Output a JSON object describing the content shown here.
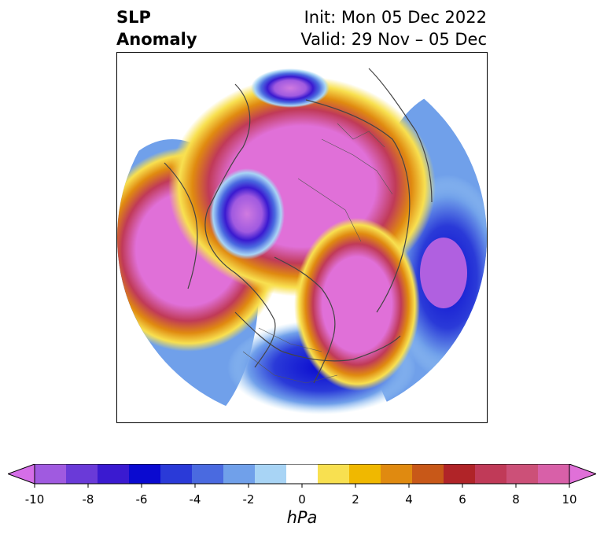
{
  "title": {
    "field_line1": "SLP",
    "field_line2": "Anomaly",
    "init": "Init: Mon 05 Dec 2022",
    "valid": "Valid: 29 Nov – 05 Dec"
  },
  "map": {
    "projection": "north-polar-stereographic",
    "background": "#ffffff",
    "features": [
      {
        "name": "anomaly-negative-north-atlantic",
        "level": -12,
        "color": "#d07ae0"
      },
      {
        "name": "anomaly-negative-north-pacific",
        "level": -6,
        "color": "#0a0ad0"
      },
      {
        "name": "anomaly-negative-usa",
        "level": -6,
        "color": "#0a0ad0"
      },
      {
        "name": "anomaly-negative-barents",
        "level": -8,
        "color": "#6a3ad8"
      },
      {
        "name": "anomaly-positive-arctic",
        "level": 12,
        "color": "#e070d8"
      },
      {
        "name": "anomaly-positive-greenland",
        "level": 12,
        "color": "#e070d8"
      }
    ]
  },
  "colorbar": {
    "unit": "hPa",
    "colors": [
      "#d56ee8",
      "#a05ae0",
      "#6a3ad8",
      "#3a1ad0",
      "#0a0ad0",
      "#2a3ad8",
      "#4a6ae0",
      "#70a0ea",
      "#a8d4f5",
      "#ffffff",
      "#f8e050",
      "#f0b800",
      "#e08a10",
      "#c85818",
      "#b02428",
      "#c03a58",
      "#cc5078",
      "#d860a8",
      "#e070d8"
    ],
    "ticks": [
      "-10",
      "-8",
      "-6",
      "-4",
      "-2",
      "0",
      "2",
      "4",
      "6",
      "8",
      "10"
    ],
    "extend": "both"
  }
}
